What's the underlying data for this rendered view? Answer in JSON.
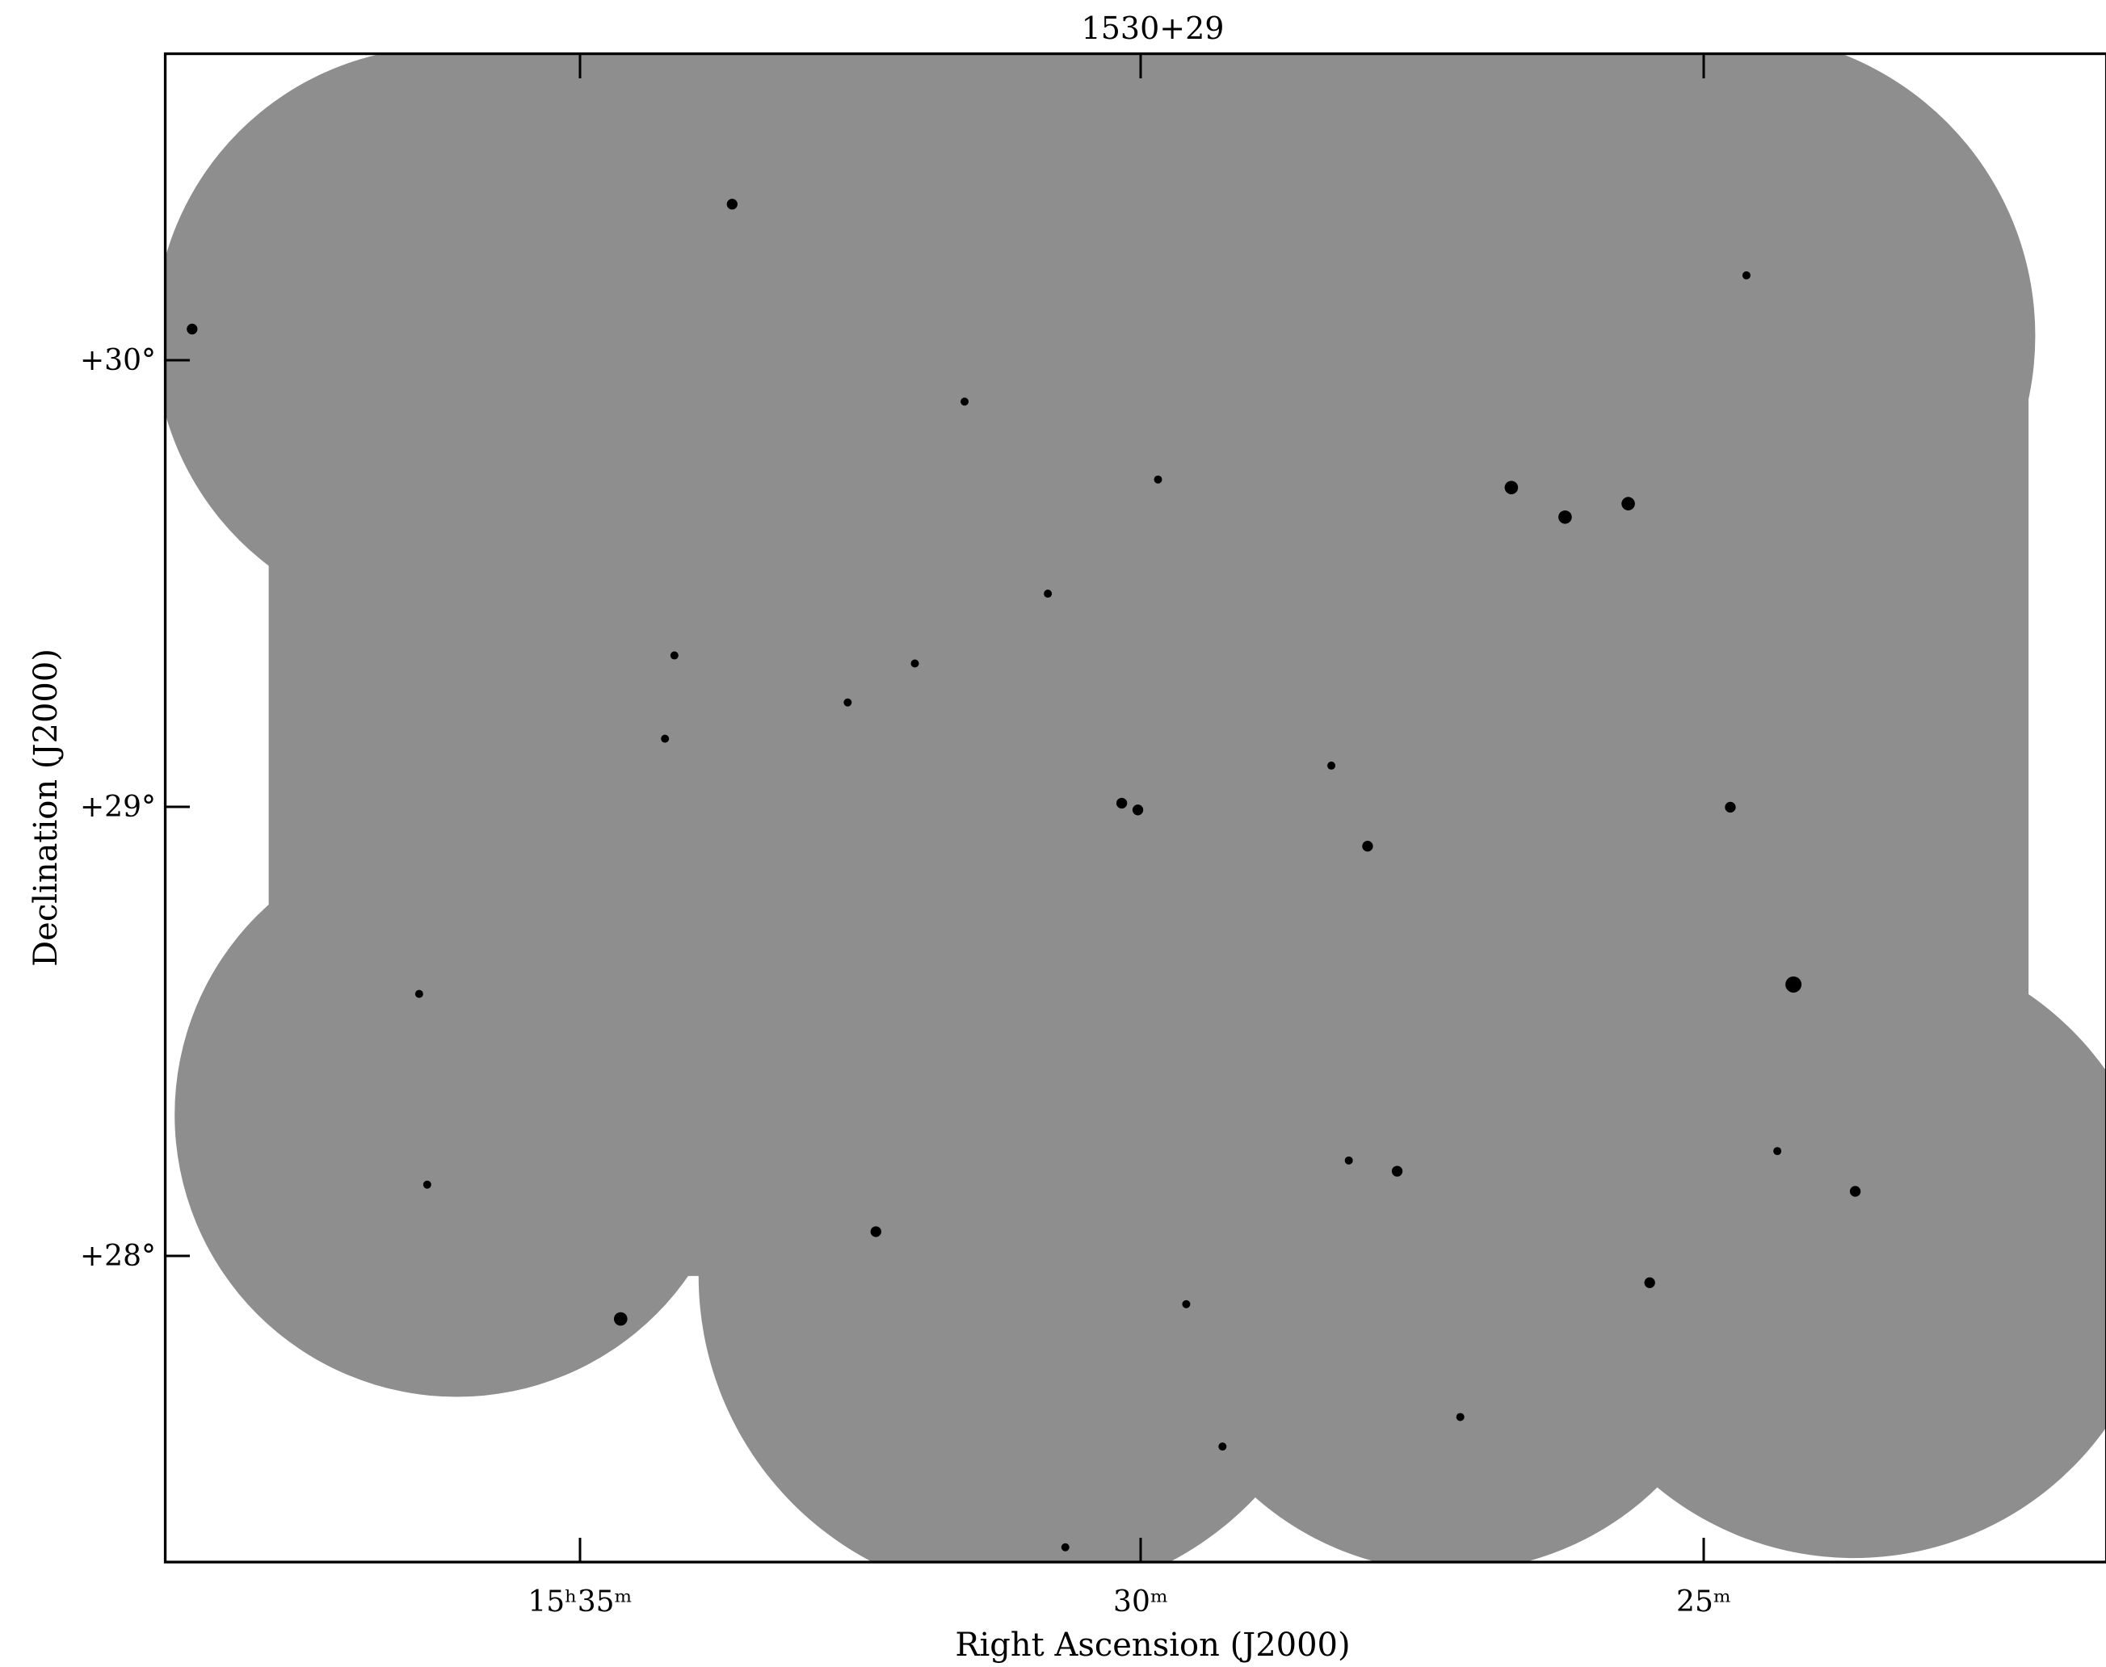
{
  "title": "1530+29",
  "x_axis": {
    "label": "Right Ascension (J2000)",
    "tick_labels": [
      "15ʰ35ᵐ",
      "30ᵐ",
      "25ᵐ"
    ]
  },
  "y_axis": {
    "label": "Declination (J2000)",
    "tick_labels": [
      "+30°",
      "+29°",
      "+28°"
    ]
  }
}
